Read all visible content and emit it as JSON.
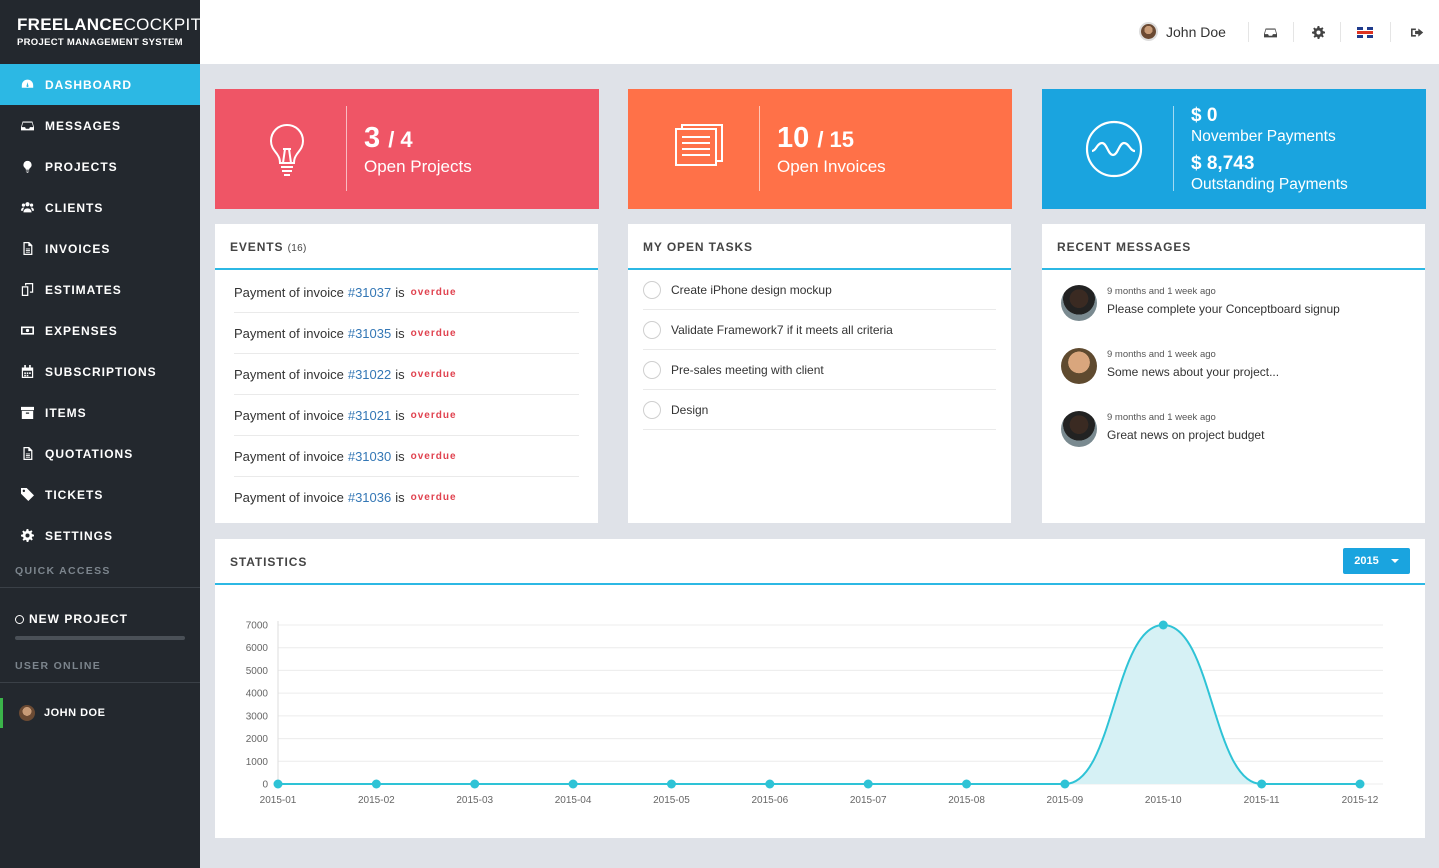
{
  "brand": {
    "line1_bold": "FREELANCE",
    "line1_light": "COCKPIT",
    "line2": "PROJECT MANAGEMENT SYSTEM"
  },
  "nav": [
    {
      "label": "DASHBOARD",
      "icon": "dashboard-icon",
      "active": true
    },
    {
      "label": "MESSAGES",
      "icon": "inbox-icon"
    },
    {
      "label": "PROJECTS",
      "icon": "lightbulb-icon"
    },
    {
      "label": "CLIENTS",
      "icon": "users-icon"
    },
    {
      "label": "INVOICES",
      "icon": "file-icon"
    },
    {
      "label": "ESTIMATES",
      "icon": "copy-icon"
    },
    {
      "label": "EXPENSES",
      "icon": "money-icon"
    },
    {
      "label": "SUBSCRIPTIONS",
      "icon": "calendar-icon"
    },
    {
      "label": "ITEMS",
      "icon": "archive-icon"
    },
    {
      "label": "QUOTATIONS",
      "icon": "file-text-icon"
    },
    {
      "label": "TICKETS",
      "icon": "tag-icon"
    },
    {
      "label": "SETTINGS",
      "icon": "gear-icon"
    }
  ],
  "quick_access": {
    "label": "QUICK ACCESS",
    "new_project": "NEW PROJECT"
  },
  "user_online": {
    "label": "USER ONLINE",
    "name": "JOHN DOE"
  },
  "topbar": {
    "user": "John Doe"
  },
  "cards": {
    "projects": {
      "open": "3",
      "total": "/ 4",
      "label": "Open Projects"
    },
    "invoices": {
      "open": "10",
      "total": "/ 15",
      "label": "Open Invoices"
    },
    "payments": {
      "month_amount": "$ 0",
      "month_label": "November Payments",
      "outstanding_amount": "$ 8,743",
      "outstanding_label": "Outstanding Payments"
    }
  },
  "events": {
    "title": "EVENTS",
    "count": "(16)",
    "items": [
      {
        "prefix": "Payment of invoice",
        "invoice": "#31037",
        "suffix": "is",
        "status": "overdue"
      },
      {
        "prefix": "Payment of invoice",
        "invoice": "#31035",
        "suffix": "is",
        "status": "overdue"
      },
      {
        "prefix": "Payment of invoice",
        "invoice": "#31022",
        "suffix": "is",
        "status": "overdue"
      },
      {
        "prefix": "Payment of invoice",
        "invoice": "#31021",
        "suffix": "is",
        "status": "overdue"
      },
      {
        "prefix": "Payment of invoice",
        "invoice": "#31030",
        "suffix": "is",
        "status": "overdue"
      },
      {
        "prefix": "Payment of invoice",
        "invoice": "#31036",
        "suffix": "is",
        "status": "overdue"
      }
    ]
  },
  "tasks": {
    "title": "MY OPEN TASKS",
    "items": [
      "Create iPhone design mockup",
      "Validate Framework7 if it meets all criteria",
      "Pre-sales meeting with client",
      "Design"
    ]
  },
  "messages": {
    "title": "RECENT MESSAGES",
    "items": [
      {
        "time": "9 months and 1 week ago",
        "text": "Please complete your Conceptboard signup",
        "avatar": "a"
      },
      {
        "time": "9 months and 1 week ago",
        "text": "Some news about your project...",
        "avatar": "b"
      },
      {
        "time": "9 months and 1 week ago",
        "text": "Great news on project budget",
        "avatar": "a"
      }
    ]
  },
  "statistics": {
    "title": "STATISTICS",
    "year": "2015"
  },
  "colors": {
    "accent": "#2cb8e4",
    "red": "#ef5566",
    "orange": "#ff7148",
    "blue": "#1aa4df",
    "line": "#2ec3d6",
    "fill": "#d6f1f5"
  },
  "chart_data": {
    "type": "area",
    "categories": [
      "2015-01",
      "2015-02",
      "2015-03",
      "2015-04",
      "2015-05",
      "2015-06",
      "2015-07",
      "2015-08",
      "2015-09",
      "2015-10",
      "2015-11",
      "2015-12"
    ],
    "values": [
      0,
      0,
      0,
      0,
      0,
      0,
      0,
      0,
      0,
      7000,
      0,
      0
    ],
    "yticks": [
      0,
      1000,
      2000,
      3000,
      4000,
      5000,
      6000,
      7000
    ],
    "ylim": [
      0,
      7000
    ],
    "title": "STATISTICS"
  }
}
